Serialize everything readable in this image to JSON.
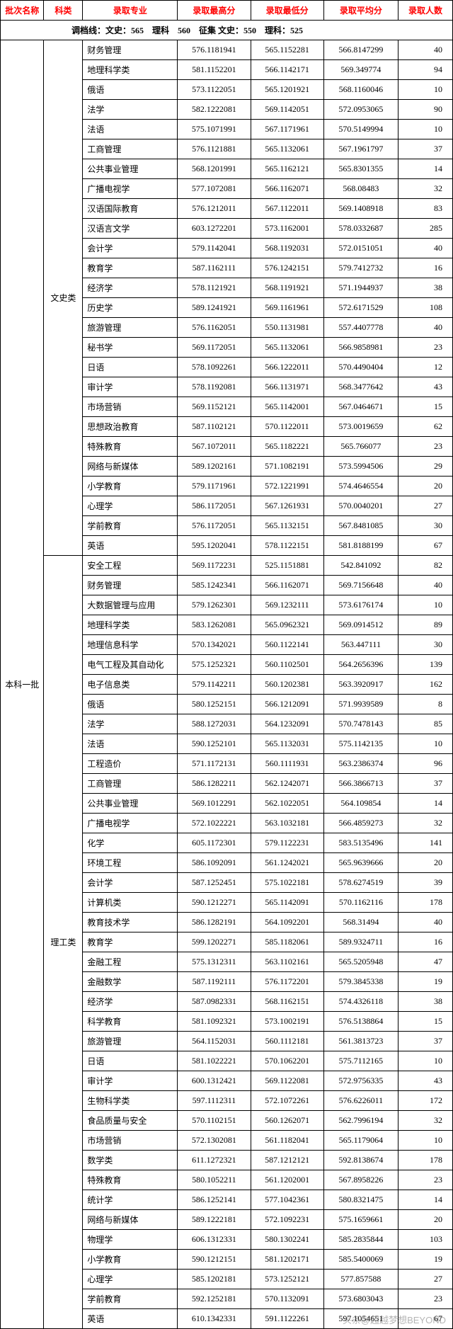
{
  "headers": {
    "batch": "批次名称",
    "category": "科类",
    "major": "录取专业",
    "max": "录取最高分",
    "min": "录取最低分",
    "avg": "录取平均分",
    "count": "录取人数"
  },
  "cutoff_line": "调档线：文史：565　理科　560　征集 文史：550　理科：525",
  "batch_name": "本科一批",
  "categories": [
    {
      "name": "文史类",
      "rows": [
        {
          "major": "财务管理",
          "max": "576.1181941",
          "min": "565.1152281",
          "avg": "566.8147299",
          "count": "40"
        },
        {
          "major": "地理科学类",
          "max": "581.1152201",
          "min": "566.1142171",
          "avg": "569.349774",
          "count": "94"
        },
        {
          "major": "俄语",
          "max": "573.1122051",
          "min": "565.1201921",
          "avg": "568.1160046",
          "count": "10"
        },
        {
          "major": "法学",
          "max": "582.1222081",
          "min": "569.1142051",
          "avg": "572.0953065",
          "count": "90"
        },
        {
          "major": "法语",
          "max": "575.1071991",
          "min": "567.1171961",
          "avg": "570.5149994",
          "count": "10"
        },
        {
          "major": "工商管理",
          "max": "576.1121881",
          "min": "565.1132061",
          "avg": "567.1961797",
          "count": "37"
        },
        {
          "major": "公共事业管理",
          "max": "568.1201991",
          "min": "565.1162121",
          "avg": "565.8301355",
          "count": "14"
        },
        {
          "major": "广播电视学",
          "max": "577.1072081",
          "min": "566.1162071",
          "avg": "568.08483",
          "count": "32"
        },
        {
          "major": "汉语国际教育",
          "max": "576.1212011",
          "min": "567.1122011",
          "avg": "569.1408918",
          "count": "83"
        },
        {
          "major": "汉语言文学",
          "max": "603.1272201",
          "min": "573.1162001",
          "avg": "578.0332687",
          "count": "285"
        },
        {
          "major": "会计学",
          "max": "579.1142041",
          "min": "568.1192031",
          "avg": "572.0151051",
          "count": "40"
        },
        {
          "major": "教育学",
          "max": "587.1162111",
          "min": "576.1242151",
          "avg": "579.7412732",
          "count": "16"
        },
        {
          "major": "经济学",
          "max": "578.1121921",
          "min": "568.1191921",
          "avg": "571.1944937",
          "count": "38"
        },
        {
          "major": "历史学",
          "max": "589.1241921",
          "min": "569.1161961",
          "avg": "572.6171529",
          "count": "108"
        },
        {
          "major": "旅游管理",
          "max": "576.1162051",
          "min": "550.1131981",
          "avg": "557.4407778",
          "count": "40"
        },
        {
          "major": "秘书学",
          "max": "569.1172051",
          "min": "565.1132061",
          "avg": "566.9858981",
          "count": "23"
        },
        {
          "major": "日语",
          "max": "578.1092261",
          "min": "566.1222011",
          "avg": "570.4490404",
          "count": "12"
        },
        {
          "major": "审计学",
          "max": "578.1192081",
          "min": "566.1131971",
          "avg": "568.3477642",
          "count": "43"
        },
        {
          "major": "市场营销",
          "max": "569.1152121",
          "min": "565.1142001",
          "avg": "567.0464671",
          "count": "15"
        },
        {
          "major": "思想政治教育",
          "max": "587.1102121",
          "min": "570.1122011",
          "avg": "573.0019659",
          "count": "62"
        },
        {
          "major": "特殊教育",
          "max": "567.1072011",
          "min": "565.1182221",
          "avg": "565.766077",
          "count": "23"
        },
        {
          "major": "网络与新媒体",
          "max": "589.1202161",
          "min": "571.1082191",
          "avg": "573.5994506",
          "count": "29"
        },
        {
          "major": "小学教育",
          "max": "579.1171961",
          "min": "572.1221991",
          "avg": "574.4646554",
          "count": "20"
        },
        {
          "major": "心理学",
          "max": "586.1172051",
          "min": "567.1261931",
          "avg": "570.0040201",
          "count": "27"
        },
        {
          "major": "学前教育",
          "max": "576.1172051",
          "min": "565.1132151",
          "avg": "567.8481085",
          "count": "30"
        },
        {
          "major": "英语",
          "max": "595.1202041",
          "min": "578.1122151",
          "avg": "581.8188199",
          "count": "67"
        }
      ]
    },
    {
      "name": "理工类",
      "rows": [
        {
          "major": "安全工程",
          "max": "569.1172231",
          "min": "525.1151881",
          "avg": "542.841092",
          "count": "82"
        },
        {
          "major": "财务管理",
          "max": "585.1242341",
          "min": "566.1162071",
          "avg": "569.7156648",
          "count": "40"
        },
        {
          "major": "大数据管理与应用",
          "max": "579.1262301",
          "min": "569.1232111",
          "avg": "573.6176174",
          "count": "10"
        },
        {
          "major": "地理科学类",
          "max": "583.1262081",
          "min": "565.0962321",
          "avg": "569.0914512",
          "count": "89"
        },
        {
          "major": "地理信息科学",
          "max": "570.1342021",
          "min": "560.1122141",
          "avg": "563.447111",
          "count": "30"
        },
        {
          "major": "电气工程及其自动化",
          "max": "575.1252321",
          "min": "560.1102501",
          "avg": "564.2656396",
          "count": "139"
        },
        {
          "major": "电子信息类",
          "max": "579.1142211",
          "min": "560.1202381",
          "avg": "563.3920917",
          "count": "162"
        },
        {
          "major": "俄语",
          "max": "580.1252151",
          "min": "566.1212091",
          "avg": "571.9939589",
          "count": "8"
        },
        {
          "major": "法学",
          "max": "588.1272031",
          "min": "564.1232091",
          "avg": "570.7478143",
          "count": "85"
        },
        {
          "major": "法语",
          "max": "590.1252101",
          "min": "565.1132031",
          "avg": "575.1142135",
          "count": "10"
        },
        {
          "major": "工程造价",
          "max": "571.1172131",
          "min": "560.1111931",
          "avg": "563.2386374",
          "count": "96"
        },
        {
          "major": "工商管理",
          "max": "586.1282211",
          "min": "562.1242071",
          "avg": "566.3866713",
          "count": "37"
        },
        {
          "major": "公共事业管理",
          "max": "569.1012291",
          "min": "562.1022051",
          "avg": "564.109854",
          "count": "14"
        },
        {
          "major": "广播电视学",
          "max": "572.1022221",
          "min": "563.1032181",
          "avg": "566.4859273",
          "count": "32"
        },
        {
          "major": "化学",
          "max": "605.1172301",
          "min": "579.1122231",
          "avg": "583.5135496",
          "count": "141"
        },
        {
          "major": "环境工程",
          "max": "586.1092091",
          "min": "561.1242021",
          "avg": "565.9639666",
          "count": "20"
        },
        {
          "major": "会计学",
          "max": "587.1252451",
          "min": "575.1022181",
          "avg": "578.6274519",
          "count": "39"
        },
        {
          "major": "计算机类",
          "max": "590.1212271",
          "min": "565.1142091",
          "avg": "570.1162116",
          "count": "178"
        },
        {
          "major": "教育技术学",
          "max": "586.1282191",
          "min": "564.1092201",
          "avg": "568.31494",
          "count": "40"
        },
        {
          "major": "教育学",
          "max": "599.1202271",
          "min": "585.1182061",
          "avg": "589.9324711",
          "count": "16"
        },
        {
          "major": "金融工程",
          "max": "575.1312311",
          "min": "563.1102161",
          "avg": "565.5205948",
          "count": "47"
        },
        {
          "major": "金融数学",
          "max": "587.1192111",
          "min": "576.1172201",
          "avg": "579.3845338",
          "count": "19"
        },
        {
          "major": "经济学",
          "max": "587.0982331",
          "min": "568.1162151",
          "avg": "574.4326118",
          "count": "38"
        },
        {
          "major": "科学教育",
          "max": "581.1092321",
          "min": "573.1002191",
          "avg": "576.5138864",
          "count": "15"
        },
        {
          "major": "旅游管理",
          "max": "564.1152031",
          "min": "560.1112181",
          "avg": "561.3813723",
          "count": "37"
        },
        {
          "major": "日语",
          "max": "581.1022221",
          "min": "570.1062201",
          "avg": "575.7112165",
          "count": "10"
        },
        {
          "major": "审计学",
          "max": "600.1312421",
          "min": "569.1122081",
          "avg": "572.9756335",
          "count": "43"
        },
        {
          "major": "生物科学类",
          "max": "597.1112311",
          "min": "572.1072261",
          "avg": "576.6226011",
          "count": "172"
        },
        {
          "major": "食品质量与安全",
          "max": "570.1102151",
          "min": "560.1262071",
          "avg": "562.7996194",
          "count": "32"
        },
        {
          "major": "市场营销",
          "max": "572.1302081",
          "min": "561.1182041",
          "avg": "565.1179064",
          "count": "10"
        },
        {
          "major": "数学类",
          "max": "611.1272321",
          "min": "587.1212121",
          "avg": "592.8138674",
          "count": "178"
        },
        {
          "major": "特殊教育",
          "max": "580.1052211",
          "min": "561.1202001",
          "avg": "567.8958226",
          "count": "23"
        },
        {
          "major": "统计学",
          "max": "586.1252141",
          "min": "577.1042361",
          "avg": "580.8321475",
          "count": "14"
        },
        {
          "major": "网络与新媒体",
          "max": "589.1222181",
          "min": "572.1092231",
          "avg": "575.1659661",
          "count": "20"
        },
        {
          "major": "物理学",
          "max": "606.1312331",
          "min": "580.1302241",
          "avg": "585.2835844",
          "count": "103"
        },
        {
          "major": "小学教育",
          "max": "590.1212151",
          "min": "581.1202171",
          "avg": "585.5400069",
          "count": "19"
        },
        {
          "major": "心理学",
          "max": "585.1202181",
          "min": "573.1252121",
          "avg": "577.857588",
          "count": "27"
        },
        {
          "major": "学前教育",
          "max": "592.1252181",
          "min": "570.1132091",
          "avg": "573.6803043",
          "count": "23"
        },
        {
          "major": "英语",
          "max": "610.1342331",
          "min": "591.1122261",
          "avg": "597.1054651",
          "count": "67"
        }
      ]
    }
  ],
  "watermark": "头条@超越梦想BEYOND"
}
